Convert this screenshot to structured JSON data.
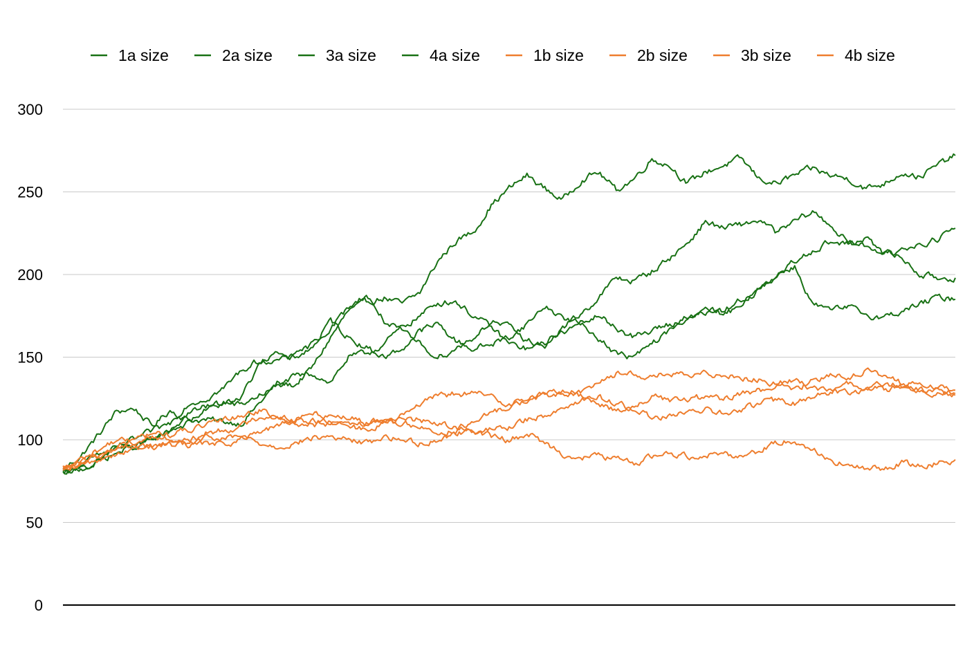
{
  "chart_data": {
    "type": "line",
    "title": "",
    "xlabel": "",
    "ylabel": "",
    "ylim": [
      0,
      300
    ],
    "yticks": [
      0,
      50,
      100,
      150,
      200,
      250,
      300
    ],
    "grid": true,
    "legend_position": "top",
    "colors": {
      "a": "#187114",
      "b": "#ee7d2d"
    },
    "series": [
      {
        "name": "1a size",
        "color": "#187114",
        "values": [
          82,
          90,
          103,
          117,
          119,
          108,
          118,
          112,
          112,
          111,
          110,
          122,
          134,
          133,
          144,
          162,
          178,
          183,
          186,
          182,
          189,
          208,
          220,
          226,
          242,
          252,
          260,
          252,
          245,
          257,
          262,
          251,
          258,
          270,
          266,
          255,
          262,
          266,
          270,
          258,
          255,
          260,
          264,
          260,
          258,
          252,
          255,
          262,
          259,
          266,
          272
        ]
      },
      {
        "name": "2a size",
        "color": "#187114",
        "values": [
          80,
          85,
          90,
          95,
          95,
          100,
          106,
          110,
          118,
          122,
          121,
          127,
          132,
          138,
          140,
          135,
          150,
          152,
          158,
          168,
          175,
          183,
          184,
          175,
          168,
          158,
          155,
          157,
          168,
          176,
          186,
          198,
          196,
          202,
          210,
          219,
          232,
          228,
          230,
          233,
          225,
          232,
          238,
          230,
          219,
          217,
          214,
          210,
          200,
          198,
          198
        ]
      },
      {
        "name": "3a size",
        "color": "#187114",
        "values": [
          80,
          82,
          88,
          95,
          100,
          105,
          110,
          122,
          125,
          131,
          142,
          148,
          148,
          150,
          156,
          172,
          162,
          156,
          150,
          155,
          166,
          170,
          160,
          155,
          158,
          162,
          170,
          181,
          174,
          170,
          162,
          152,
          150,
          158,
          166,
          175,
          178,
          176,
          180,
          192,
          200,
          205,
          182,
          178,
          180,
          176,
          174,
          178,
          182,
          186,
          185
        ]
      },
      {
        "name": "4a size",
        "color": "#187114",
        "values": [
          79,
          82,
          87,
          92,
          96,
          100,
          104,
          116,
          120,
          122,
          126,
          145,
          152,
          150,
          158,
          168,
          180,
          188,
          172,
          165,
          158,
          150,
          155,
          162,
          172,
          168,
          160,
          158,
          165,
          170,
          175,
          168,
          162,
          166,
          170,
          173,
          177,
          178,
          185,
          190,
          198,
          208,
          215,
          220,
          218,
          222,
          212,
          215,
          218,
          222,
          228
        ]
      },
      {
        "name": "1b size",
        "color": "#ee7d2d",
        "values": [
          82,
          88,
          94,
          100,
          98,
          96,
          97,
          96,
          101,
          100,
          102,
          98,
          96,
          98,
          101,
          102,
          100,
          98,
          102,
          100,
          98,
          100,
          104,
          106,
          102,
          100,
          104,
          98,
          92,
          88,
          91,
          88,
          86,
          90,
          92,
          90,
          91,
          92,
          90,
          94,
          98,
          100,
          94,
          88,
          84,
          82,
          83,
          86,
          84,
          86,
          88
        ]
      },
      {
        "name": "2b size",
        "color": "#ee7d2d",
        "values": [
          83,
          86,
          90,
          95,
          98,
          102,
          100,
          98,
          104,
          106,
          108,
          114,
          115,
          112,
          116,
          115,
          114,
          110,
          112,
          116,
          122,
          126,
          128,
          128,
          126,
          122,
          125,
          128,
          130,
          128,
          136,
          140,
          140,
          138,
          140,
          138,
          140,
          140,
          138,
          136,
          134,
          136,
          132,
          130,
          128,
          130,
          134,
          132,
          130,
          128,
          130
        ]
      },
      {
        "name": "3b size",
        "color": "#ee7d2d",
        "values": [
          81,
          85,
          90,
          96,
          100,
          104,
          103,
          106,
          108,
          112,
          115,
          118,
          113,
          110,
          109,
          110,
          108,
          110,
          112,
          110,
          108,
          104,
          106,
          110,
          116,
          120,
          124,
          126,
          128,
          126,
          122,
          118,
          120,
          126,
          124,
          124,
          126,
          124,
          128,
          130,
          132,
          130,
          136,
          140,
          138,
          142,
          138,
          134,
          134,
          132,
          128
        ]
      },
      {
        "name": "4b size",
        "color": "#ee7d2d",
        "values": [
          80,
          84,
          88,
          92,
          94,
          96,
          98,
          100,
          98,
          97,
          100,
          104,
          108,
          112,
          112,
          110,
          108,
          106,
          110,
          112,
          112,
          110,
          108,
          104,
          106,
          108,
          112,
          115,
          120,
          124,
          126,
          122,
          118,
          114,
          114,
          116,
          118,
          116,
          118,
          122,
          124,
          122,
          126,
          128,
          134,
          132,
          130,
          132,
          130,
          130,
          127
        ]
      }
    ]
  }
}
